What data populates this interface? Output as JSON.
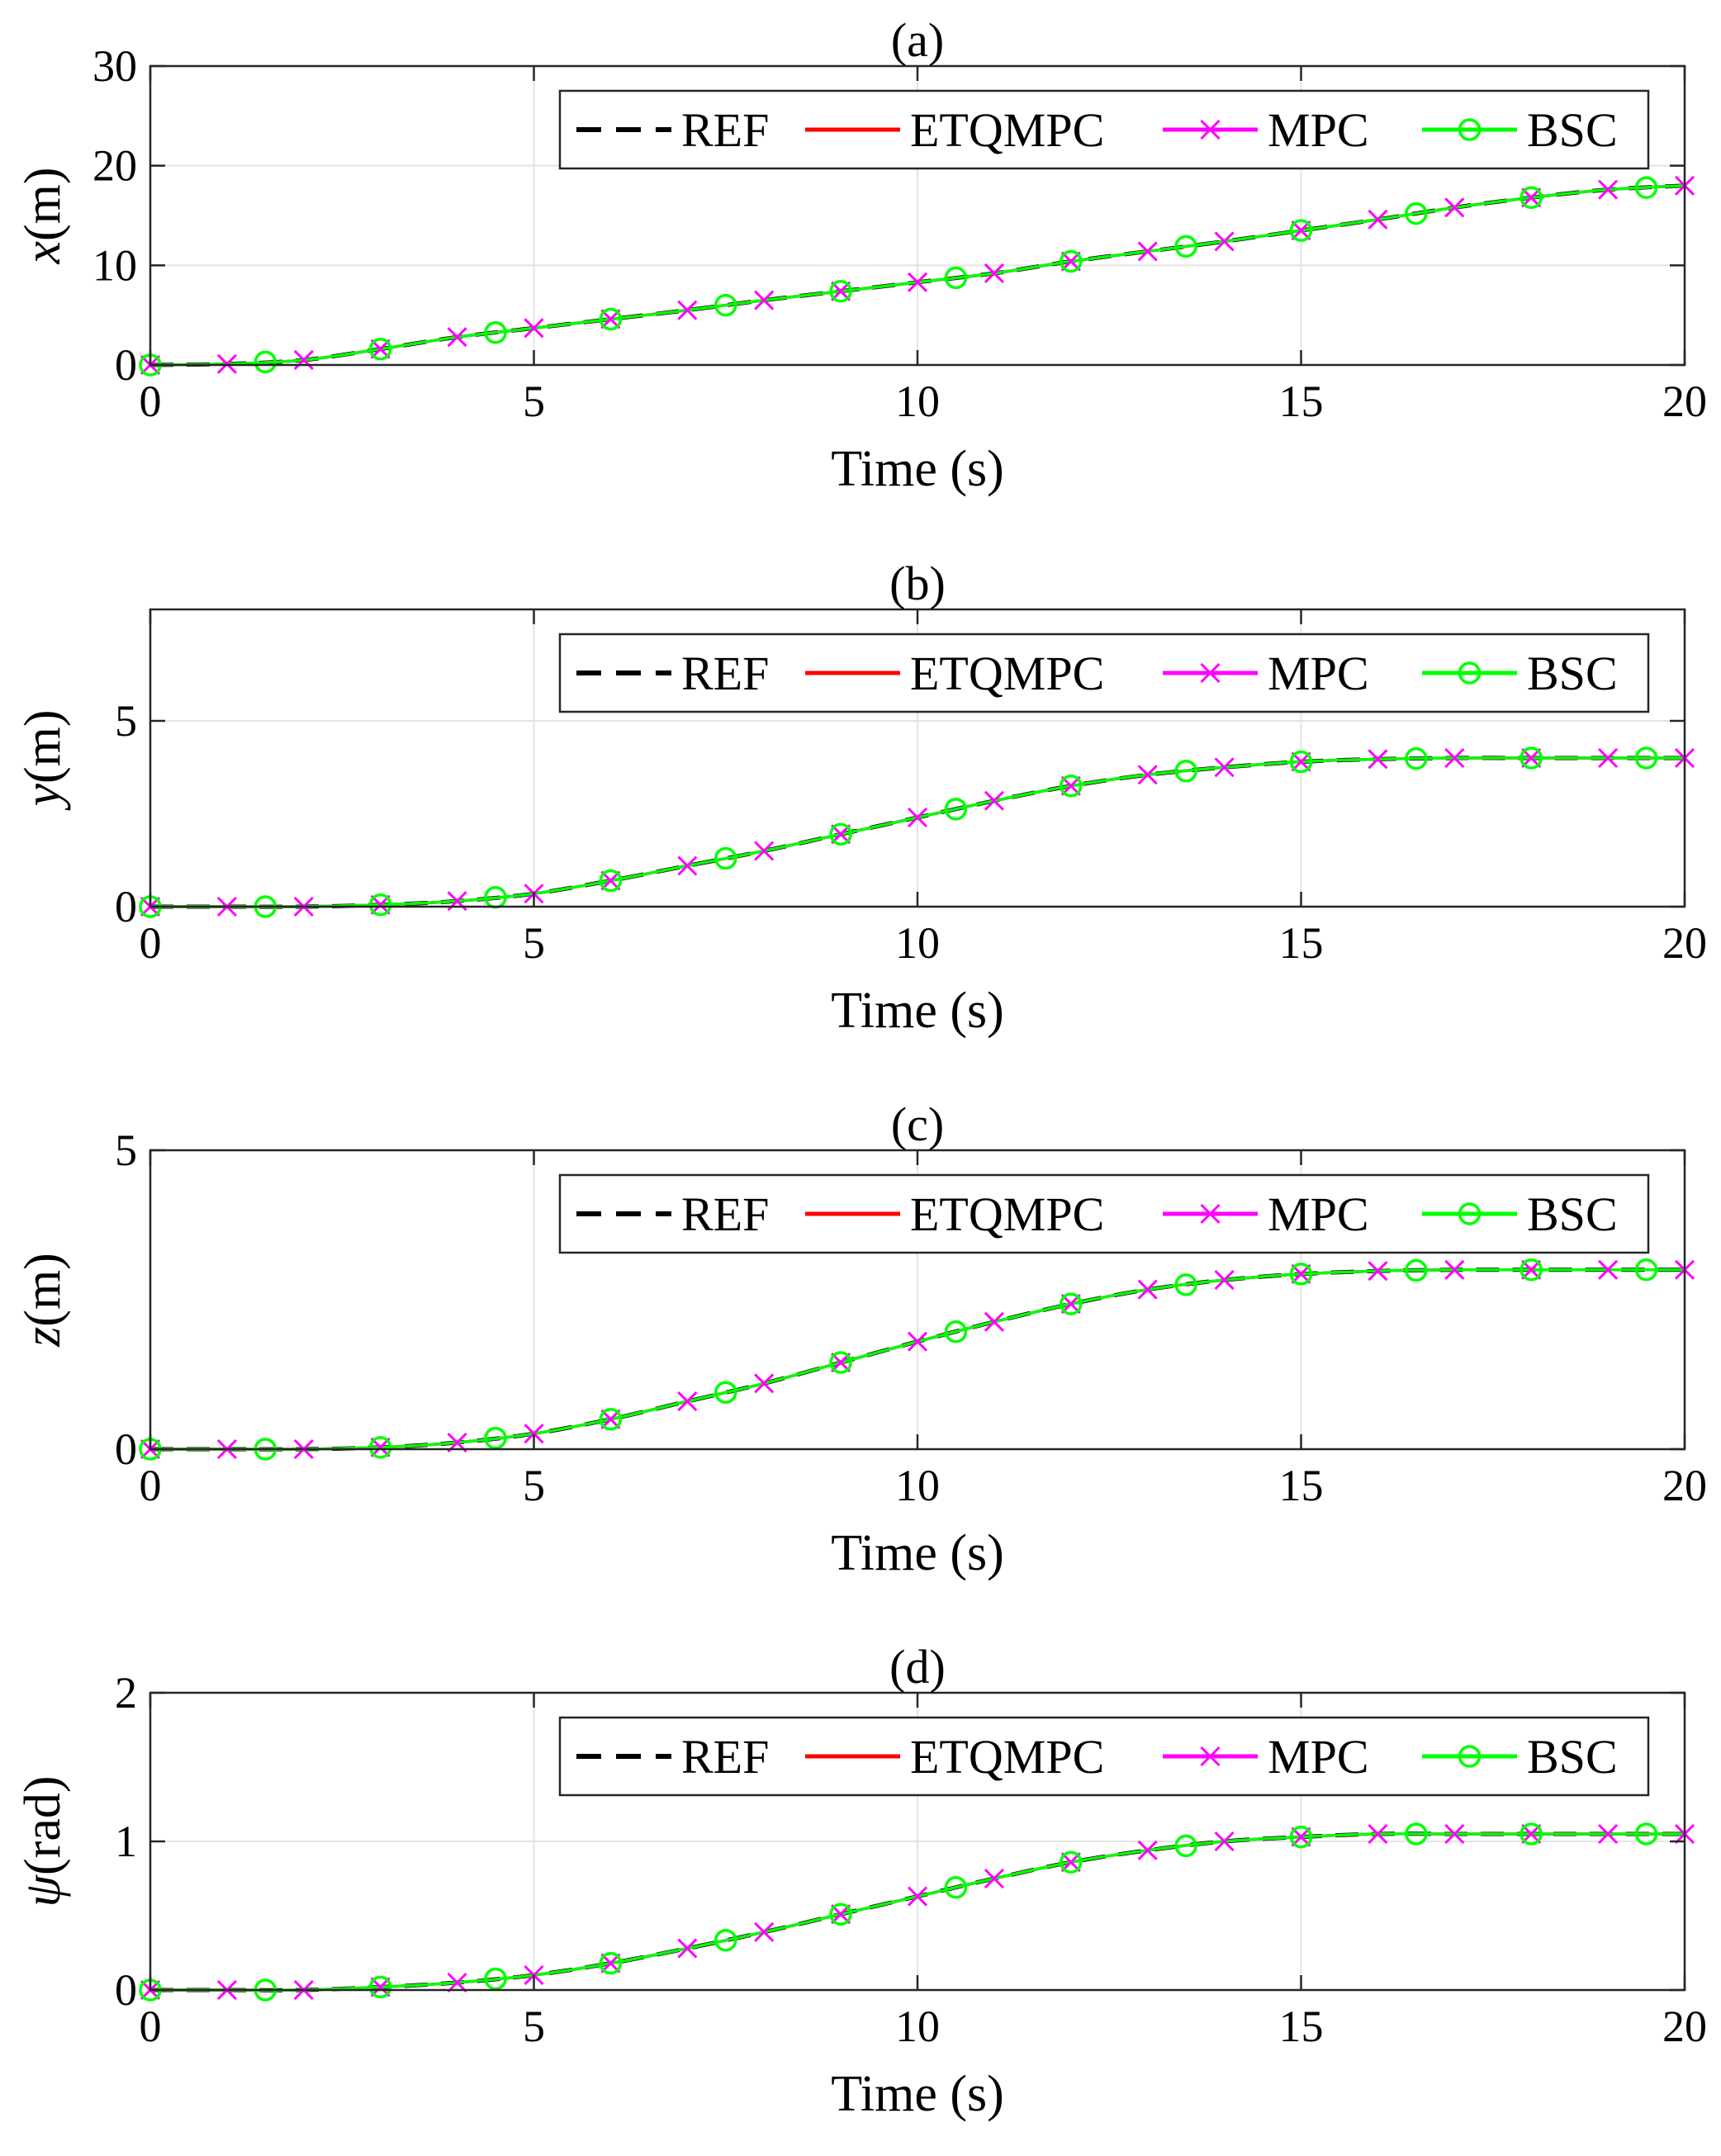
{
  "chart_data": [
    {
      "type": "line",
      "title": "(a)",
      "xlabel": "Time (s)",
      "ylabel": "x(m)",
      "ylabel_var": "x",
      "ylabel_unit": "(m)",
      "xlim": [
        0,
        20
      ],
      "ylim": [
        0,
        30
      ],
      "xticks": [
        "0",
        "5",
        "10",
        "15",
        "20"
      ],
      "yticks": [
        "0",
        "10",
        "20",
        "30"
      ],
      "grid": true,
      "legend": {
        "position": "top-right",
        "orientation": "horizontal"
      },
      "x": [
        0,
        1,
        2,
        3,
        4,
        5,
        6,
        7,
        8,
        9,
        10,
        11,
        12,
        13,
        14,
        15,
        16,
        17,
        18,
        19,
        20
      ],
      "series": [
        {
          "name": "REF",
          "color": "#000000",
          "style": "dashed",
          "marker": "none",
          "values": [
            0.0,
            0.1,
            0.5,
            1.6,
            2.8,
            3.7,
            4.6,
            5.5,
            6.5,
            7.4,
            8.3,
            9.2,
            10.4,
            11.4,
            12.4,
            13.5,
            14.6,
            15.8,
            16.8,
            17.6,
            18.0
          ]
        },
        {
          "name": "ETQMPC",
          "color": "#ff0000",
          "style": "solid",
          "marker": "none",
          "values": [
            0.0,
            0.1,
            0.5,
            1.6,
            2.8,
            3.7,
            4.6,
            5.5,
            6.5,
            7.4,
            8.3,
            9.2,
            10.4,
            11.4,
            12.4,
            13.5,
            14.6,
            15.8,
            16.8,
            17.6,
            18.0
          ]
        },
        {
          "name": "MPC",
          "color": "#ff00ff",
          "style": "solid",
          "marker": "x",
          "values": [
            0.0,
            0.1,
            0.5,
            1.6,
            2.8,
            3.7,
            4.6,
            5.5,
            6.5,
            7.4,
            8.3,
            9.2,
            10.4,
            11.4,
            12.4,
            13.5,
            14.6,
            15.8,
            16.8,
            17.6,
            18.0
          ]
        },
        {
          "name": "BSC",
          "color": "#00ff00",
          "style": "solid",
          "marker": "o",
          "values": [
            0.0,
            0.1,
            0.5,
            1.6,
            2.8,
            3.7,
            4.6,
            5.5,
            6.5,
            7.4,
            8.3,
            9.2,
            10.4,
            11.4,
            12.4,
            13.5,
            14.6,
            15.8,
            16.8,
            17.6,
            18.0
          ]
        }
      ]
    },
    {
      "type": "line",
      "title": "(b)",
      "xlabel": "Time (s)",
      "ylabel": "y(m)",
      "ylabel_var": "y",
      "ylabel_unit": "(m)",
      "xlim": [
        0,
        20
      ],
      "ylim": [
        0,
        8
      ],
      "xticks": [
        "0",
        "5",
        "10",
        "15",
        "20"
      ],
      "yticks": [
        "0",
        "5"
      ],
      "grid": true,
      "legend": {
        "position": "top-right",
        "orientation": "horizontal"
      },
      "x": [
        0,
        1,
        2,
        3,
        4,
        5,
        6,
        7,
        8,
        9,
        10,
        11,
        12,
        13,
        14,
        15,
        16,
        17,
        18,
        19,
        20
      ],
      "series": [
        {
          "name": "REF",
          "color": "#000000",
          "style": "dashed",
          "marker": "none",
          "values": [
            0.0,
            0.0,
            0.0,
            0.05,
            0.15,
            0.35,
            0.7,
            1.1,
            1.5,
            1.95,
            2.4,
            2.85,
            3.25,
            3.55,
            3.75,
            3.9,
            3.97,
            4.0,
            4.0,
            4.0,
            4.0
          ]
        },
        {
          "name": "ETQMPC",
          "color": "#ff0000",
          "style": "solid",
          "marker": "none",
          "values": [
            0.0,
            0.0,
            0.0,
            0.05,
            0.15,
            0.35,
            0.7,
            1.1,
            1.5,
            1.95,
            2.4,
            2.85,
            3.25,
            3.55,
            3.75,
            3.9,
            3.97,
            4.0,
            4.0,
            4.0,
            4.0
          ]
        },
        {
          "name": "MPC",
          "color": "#ff00ff",
          "style": "solid",
          "marker": "x",
          "values": [
            0.0,
            0.0,
            0.0,
            0.05,
            0.15,
            0.35,
            0.7,
            1.1,
            1.5,
            1.95,
            2.4,
            2.85,
            3.25,
            3.55,
            3.75,
            3.9,
            3.97,
            4.0,
            4.0,
            4.0,
            4.0
          ]
        },
        {
          "name": "BSC",
          "color": "#00ff00",
          "style": "solid",
          "marker": "o",
          "values": [
            0.0,
            0.0,
            0.0,
            0.05,
            0.15,
            0.35,
            0.7,
            1.1,
            1.5,
            1.95,
            2.4,
            2.85,
            3.25,
            3.55,
            3.75,
            3.9,
            3.97,
            4.0,
            4.0,
            4.0,
            4.0
          ]
        }
      ]
    },
    {
      "type": "line",
      "title": "(c)",
      "xlabel": "Time (s)",
      "ylabel": "z(m)",
      "ylabel_var": "z",
      "ylabel_unit": "(m)",
      "xlim": [
        0,
        20
      ],
      "ylim": [
        0,
        5
      ],
      "xticks": [
        "0",
        "5",
        "10",
        "15",
        "20"
      ],
      "yticks": [
        "0",
        "5"
      ],
      "grid": true,
      "legend": {
        "position": "top-right",
        "orientation": "horizontal"
      },
      "x": [
        0,
        1,
        2,
        3,
        4,
        5,
        6,
        7,
        8,
        9,
        10,
        11,
        12,
        13,
        14,
        15,
        16,
        17,
        18,
        19,
        20
      ],
      "series": [
        {
          "name": "REF",
          "color": "#000000",
          "style": "dashed",
          "marker": "none",
          "values": [
            0.0,
            0.0,
            0.0,
            0.03,
            0.11,
            0.26,
            0.5,
            0.8,
            1.1,
            1.45,
            1.8,
            2.13,
            2.43,
            2.67,
            2.83,
            2.93,
            2.98,
            3.0,
            3.0,
            3.0,
            3.0
          ]
        },
        {
          "name": "ETQMPC",
          "color": "#ff0000",
          "style": "solid",
          "marker": "none",
          "values": [
            0.0,
            0.0,
            0.0,
            0.03,
            0.11,
            0.26,
            0.5,
            0.8,
            1.1,
            1.45,
            1.8,
            2.13,
            2.43,
            2.67,
            2.83,
            2.93,
            2.98,
            3.0,
            3.0,
            3.0,
            3.0
          ]
        },
        {
          "name": "MPC",
          "color": "#ff00ff",
          "style": "solid",
          "marker": "x",
          "values": [
            0.0,
            0.0,
            0.0,
            0.03,
            0.11,
            0.26,
            0.5,
            0.8,
            1.1,
            1.45,
            1.8,
            2.13,
            2.43,
            2.67,
            2.83,
            2.93,
            2.98,
            3.0,
            3.0,
            3.0,
            3.0
          ]
        },
        {
          "name": "BSC",
          "color": "#00ff00",
          "style": "solid",
          "marker": "o",
          "values": [
            0.0,
            0.0,
            0.0,
            0.03,
            0.11,
            0.26,
            0.5,
            0.8,
            1.1,
            1.45,
            1.8,
            2.13,
            2.43,
            2.67,
            2.83,
            2.93,
            2.98,
            3.0,
            3.0,
            3.0,
            3.0
          ]
        }
      ]
    },
    {
      "type": "line",
      "title": "(d)",
      "xlabel": "Time (s)",
      "ylabel": "ψ(rad)",
      "ylabel_var": "ψ",
      "ylabel_unit": "(rad)",
      "xlim": [
        0,
        20
      ],
      "ylim": [
        0,
        2
      ],
      "xticks": [
        "0",
        "5",
        "10",
        "15",
        "20"
      ],
      "yticks": [
        "0",
        "1",
        "2"
      ],
      "grid": true,
      "legend": {
        "position": "top-right",
        "orientation": "horizontal"
      },
      "x": [
        0,
        1,
        2,
        3,
        4,
        5,
        6,
        7,
        8,
        9,
        10,
        11,
        12,
        13,
        14,
        15,
        16,
        17,
        18,
        19,
        20
      ],
      "series": [
        {
          "name": "REF",
          "color": "#000000",
          "style": "dashed",
          "marker": "none",
          "values": [
            0.0,
            0.0,
            0.0,
            0.02,
            0.05,
            0.1,
            0.18,
            0.28,
            0.39,
            0.51,
            0.63,
            0.75,
            0.86,
            0.94,
            1.0,
            1.03,
            1.05,
            1.05,
            1.05,
            1.05,
            1.05
          ]
        },
        {
          "name": "ETQMPC",
          "color": "#ff0000",
          "style": "solid",
          "marker": "none",
          "values": [
            0.0,
            0.0,
            0.0,
            0.02,
            0.05,
            0.1,
            0.18,
            0.28,
            0.39,
            0.51,
            0.63,
            0.75,
            0.86,
            0.94,
            1.0,
            1.03,
            1.05,
            1.05,
            1.05,
            1.05,
            1.05
          ]
        },
        {
          "name": "MPC",
          "color": "#ff00ff",
          "style": "solid",
          "marker": "x",
          "values": [
            0.0,
            0.0,
            0.0,
            0.02,
            0.05,
            0.1,
            0.18,
            0.28,
            0.39,
            0.51,
            0.63,
            0.75,
            0.86,
            0.94,
            1.0,
            1.03,
            1.05,
            1.05,
            1.05,
            1.05,
            1.05
          ]
        },
        {
          "name": "BSC",
          "color": "#00ff00",
          "style": "solid",
          "marker": "o",
          "values": [
            0.0,
            0.0,
            0.0,
            0.02,
            0.05,
            0.1,
            0.18,
            0.28,
            0.39,
            0.51,
            0.63,
            0.75,
            0.86,
            0.94,
            1.0,
            1.03,
            1.05,
            1.05,
            1.05,
            1.05,
            1.05
          ]
        }
      ]
    }
  ],
  "marker_times": {
    "MPC": [
      0,
      1,
      2,
      3,
      4,
      5,
      6,
      7,
      8,
      9,
      10,
      11,
      12,
      13,
      14,
      15,
      16,
      17,
      18,
      19,
      20
    ],
    "BSC": [
      0,
      1.5,
      3,
      4.5,
      6,
      7.5,
      9,
      10.5,
      12,
      13.5,
      15,
      16.5,
      18,
      19.5
    ]
  }
}
